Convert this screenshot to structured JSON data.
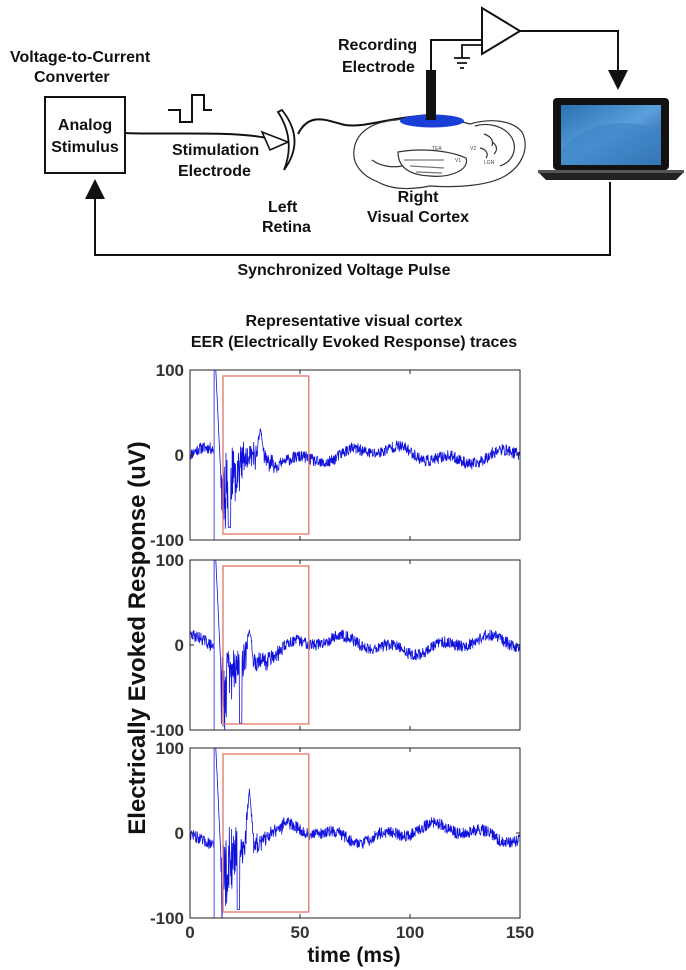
{
  "diagram": {
    "converter_title_line1": "Voltage-to-Current",
    "converter_title_line2": "Converter",
    "box_line1": "Analog",
    "box_line2": "Stimulus",
    "stim_line1": "Stimulation",
    "stim_line2": "Electrode",
    "retina_line1": "Left",
    "retina_line2": "Retina",
    "cortex_line1": "Right",
    "cortex_line2": "Visual Cortex",
    "rec_line1": "Recording",
    "rec_line2": "Electrode",
    "sync_label": "Synchronized Voltage Pulse",
    "brain_region_labels": [
      "TEA",
      "V1",
      "V2",
      "LGN"
    ]
  },
  "chart_data": {
    "type": "line",
    "title_line1": "Representative visual cortex",
    "title_line2": "EER (Electrically Evoked Response) traces",
    "xlabel": "time (ms)",
    "ylabel": "Electrically Evoked Response (uV)",
    "xlim": [
      0,
      150
    ],
    "ylim": [
      -100,
      100
    ],
    "xticks": [
      0,
      50,
      100,
      150
    ],
    "yticks": [
      -100,
      0,
      100
    ],
    "stimulus_marker_ms": 11,
    "analysis_window_ms": [
      15,
      54
    ],
    "trace_color": "#1111dd",
    "window_color": "#e08070",
    "marker_color": "#8888ee",
    "panels": [
      {
        "seed": 11,
        "peak_ms": 18,
        "peak_min": -85,
        "late_peak_ms": 32,
        "late_peak": 32
      },
      {
        "seed": 29,
        "peak_ms": 23,
        "peak_min": -92,
        "late_peak_ms": 27,
        "late_peak": 18
      },
      {
        "seed": 47,
        "peak_ms": 22,
        "peak_min": -90,
        "late_peak_ms": 27,
        "late_peak": 52
      }
    ]
  }
}
